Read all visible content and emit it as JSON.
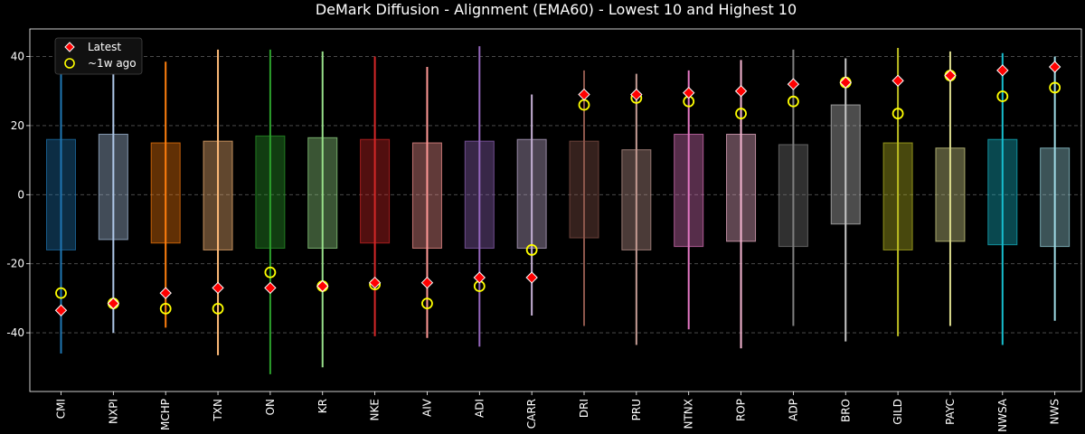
{
  "chart_data": {
    "type": "box-range",
    "title": "DeMark Diffusion - Alignment (EMA60) - Lowest 10 and Highest 10",
    "xlabel": "",
    "ylabel": "",
    "ylim": [
      -57,
      48
    ],
    "yticks": [
      -40,
      -20,
      0,
      20,
      40
    ],
    "grid": "horizontal-dashed",
    "legend": {
      "placement": "top-left",
      "entries": [
        {
          "label": "Latest",
          "marker": "red-diamond"
        },
        {
          "label": "~1w ago",
          "marker": "yellow-circle"
        }
      ]
    },
    "categories": [
      "CMI",
      "NXPI",
      "MCHP",
      "TXN",
      "ON",
      "KR",
      "NKE",
      "AIV",
      "ADI",
      "CARR",
      "DRI",
      "PRU",
      "NTNX",
      "ROP",
      "ADP",
      "BRO",
      "GILD",
      "PAYC",
      "NWSA",
      "NWS"
    ],
    "colors": [
      "#1f77b4",
      "#aec7e8",
      "#ff7f0e",
      "#ffbb78",
      "#2ca02c",
      "#98df8a",
      "#d62728",
      "#ff9896",
      "#9467bd",
      "#c5b0d5",
      "#8c564b",
      "#c49c94",
      "#e377c2",
      "#f7b6d2",
      "#7f7f7f",
      "#c7c7c7",
      "#bcbd22",
      "#dbdb8d",
      "#17becf",
      "#9edae5"
    ],
    "series": [
      {
        "name": "range_min",
        "values": [
          -46,
          -40,
          -38.5,
          -46.5,
          -52,
          -50,
          -41,
          -41.5,
          -44,
          -35,
          -38,
          -43.5,
          -39,
          -44.5,
          -38,
          -42.5,
          -41,
          -38,
          -43.5,
          -36.5
        ]
      },
      {
        "name": "range_max",
        "values": [
          41.5,
          38,
          38.5,
          42,
          42,
          41.5,
          40,
          37,
          43,
          29,
          36,
          35,
          36,
          39,
          42,
          39.5,
          42.5,
          41.5,
          41,
          40
        ]
      },
      {
        "name": "box_low",
        "values": [
          -16,
          -13,
          -14,
          -16,
          -15.5,
          -15.5,
          -14,
          -15.5,
          -15.5,
          -15.5,
          -12.5,
          -16,
          -15,
          -13.5,
          -15,
          -8.5,
          -16,
          -13.5,
          -14.5,
          -15
        ]
      },
      {
        "name": "box_high",
        "values": [
          16,
          17.5,
          15,
          15.5,
          17,
          16.5,
          16,
          15,
          15.5,
          16,
          15.5,
          13,
          17.5,
          17.5,
          14.5,
          26,
          15,
          13.5,
          16,
          13.5
        ]
      },
      {
        "name": "Latest",
        "values": [
          -33.5,
          -31.5,
          -28.5,
          -27,
          -27,
          -26.5,
          -25.5,
          -25.5,
          -24,
          -24,
          29,
          29,
          29.5,
          30,
          32,
          32.5,
          33,
          34.5,
          36,
          37
        ]
      },
      {
        "name": "~1w ago",
        "values": [
          -28.5,
          -31.5,
          -33,
          -33,
          -22.5,
          -26.5,
          -26,
          -31.5,
          -26.5,
          -16,
          26,
          28,
          27,
          23.5,
          27,
          32.5,
          23.5,
          34.5,
          28.5,
          31
        ]
      }
    ]
  }
}
